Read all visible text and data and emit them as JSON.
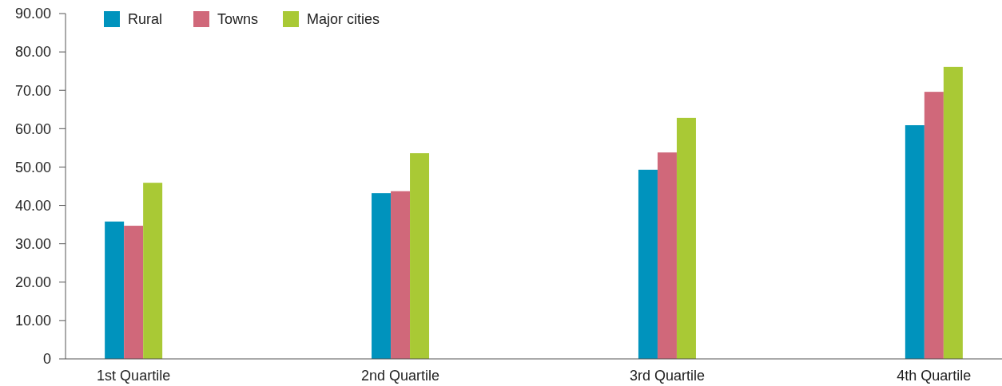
{
  "chart_data": {
    "type": "bar",
    "categories": [
      "1st Quartile",
      "2nd Quartile",
      "3rd Quartile",
      "4th Quartile"
    ],
    "series": [
      {
        "name": "Rural",
        "color": "#0093bd",
        "values": [
          35.8,
          43.2,
          49.3,
          60.9
        ]
      },
      {
        "name": "Towns",
        "color": "#d0687a",
        "values": [
          34.7,
          43.7,
          53.8,
          69.6
        ]
      },
      {
        "name": "Major cities",
        "color": "#a9c935",
        "values": [
          45.9,
          53.6,
          62.8,
          76.1
        ]
      }
    ],
    "ylim": [
      0,
      90
    ],
    "yticks": [
      0,
      {
        "value": 10,
        "label": "10.00"
      },
      {
        "value": 20,
        "label": "20.00"
      },
      {
        "value": 30,
        "label": "30.00"
      },
      {
        "value": 40,
        "label": "40.00"
      },
      {
        "value": 50,
        "label": "50.00"
      },
      {
        "value": 60,
        "label": "60.00"
      },
      {
        "value": 70,
        "label": "70.00"
      },
      {
        "value": 80,
        "label": "80.00"
      },
      {
        "value": 90,
        "label": "90.00"
      }
    ],
    "grid": false,
    "legend": "top left"
  }
}
